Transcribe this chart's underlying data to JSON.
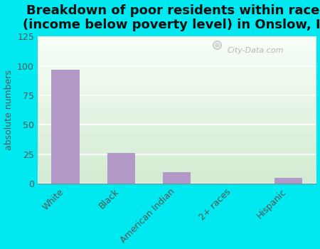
{
  "title": "Breakdown of poor residents within races\n(income below poverty level) in Onslow, IA",
  "categories": [
    "White",
    "Black",
    "American Indian",
    "2+ races",
    "Hispanic"
  ],
  "values": [
    97,
    26,
    10,
    0,
    5
  ],
  "bar_color": "#b399c8",
  "ylabel": "absolute numbers",
  "ylim": [
    0,
    125
  ],
  "yticks": [
    0,
    25,
    50,
    75,
    100,
    125
  ],
  "bg_outer": "#00e8f0",
  "bg_gradient_top": "#f8fff8",
  "bg_gradient_bottom": "#d8f0d8",
  "title_fontsize": 13,
  "label_fontsize": 9,
  "tick_fontsize": 9,
  "watermark": "City-Data.com"
}
